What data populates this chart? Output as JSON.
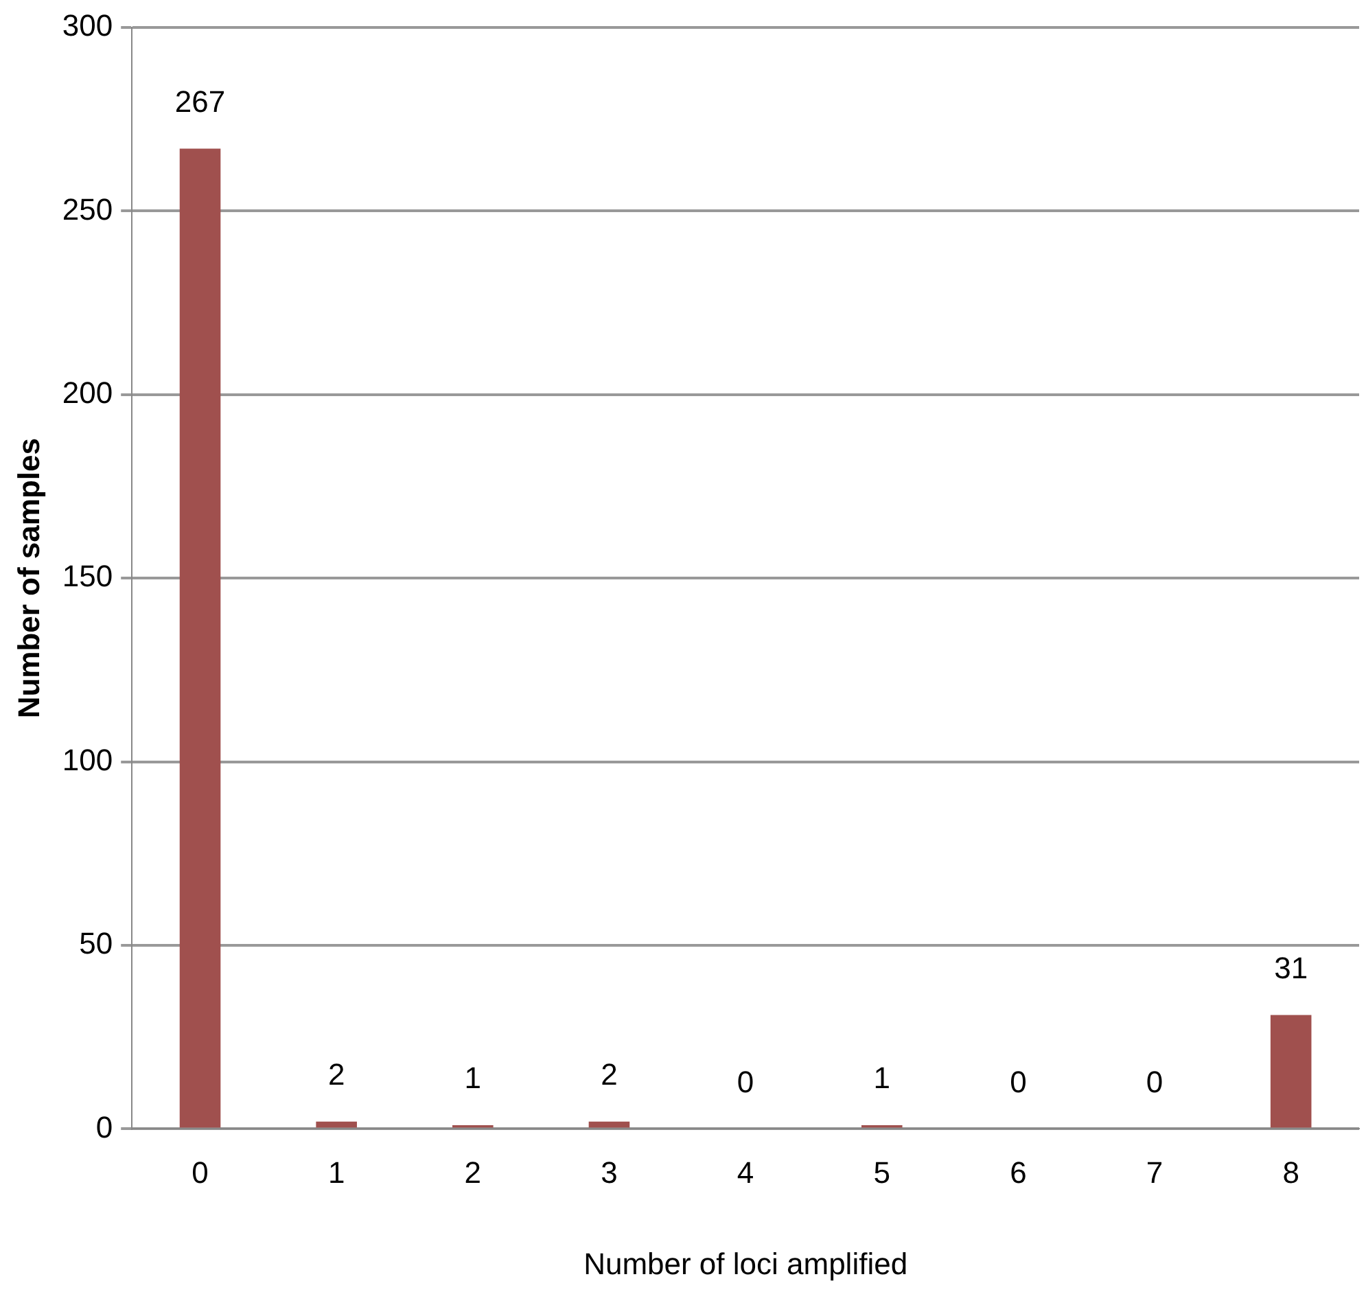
{
  "chart_data": {
    "type": "bar",
    "xlabel": "Number of loci amplified",
    "ylabel": "Number of samples",
    "categories": [
      "0",
      "1",
      "2",
      "3",
      "4",
      "5",
      "6",
      "7",
      "8"
    ],
    "values": [
      267,
      2,
      1,
      2,
      0,
      1,
      0,
      0,
      31
    ],
    "color": "#a0504e",
    "ylim": [
      0,
      300
    ],
    "yticks": [
      0,
      50,
      100,
      150,
      200,
      250,
      300
    ],
    "grid": "y",
    "data_labels": true
  }
}
